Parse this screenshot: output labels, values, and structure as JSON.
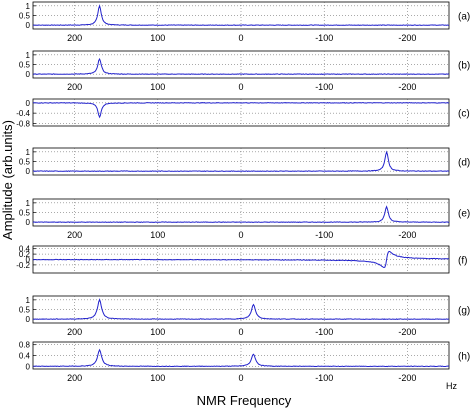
{
  "chart_data": {
    "type": "line",
    "xlabel": "NMR Frequency",
    "ylabel": "Amplitude (arb.units)",
    "x_unit": "Hz",
    "xlim": [
      250,
      -250
    ],
    "x_ticks": [
      200,
      100,
      0,
      -100,
      -200
    ],
    "line_color": "#2222cc",
    "grid": true,
    "panels": [
      {
        "label": "(a)",
        "ylim": [
          -0.2,
          1.2
        ],
        "yticks": [
          0,
          0.5,
          1
        ],
        "ytick_labels": [
          "0",
          "0.5",
          "1"
        ],
        "peaks": [
          {
            "x": 170,
            "y": 1.0,
            "width": 2.5,
            "shape": "absorption"
          }
        ],
        "show_x_ticks": true
      },
      {
        "label": "(b)",
        "ylim": [
          -0.2,
          1.2
        ],
        "yticks": [
          0,
          0.5,
          1
        ],
        "ytick_labels": [
          "0",
          "0.5",
          "1"
        ],
        "peaks": [
          {
            "x": 170,
            "y": 0.8,
            "width": 2.5,
            "shape": "absorption"
          }
        ],
        "show_x_ticks": true
      },
      {
        "label": "(c)",
        "ylim": [
          -0.9,
          0.15
        ],
        "yticks": [
          0,
          -0.4,
          -0.8
        ],
        "ytick_labels": [
          "0",
          "-0.4",
          "-0.8"
        ],
        "peaks": [
          {
            "x": 170,
            "y": -0.55,
            "width": 2.5,
            "shape": "absorption"
          }
        ],
        "show_x_ticks": false
      },
      {
        "label": "(d)",
        "ylim": [
          -0.2,
          1.2
        ],
        "yticks": [
          0,
          0.5,
          1
        ],
        "ytick_labels": [
          "0",
          "0.5",
          "1"
        ],
        "peaks": [
          {
            "x": -175,
            "y": 1.0,
            "width": 2.5,
            "shape": "absorption"
          }
        ],
        "show_x_ticks": false
      },
      {
        "label": "(e)",
        "ylim": [
          -0.2,
          1.2
        ],
        "yticks": [
          0,
          0.5,
          1
        ],
        "ytick_labels": [
          "0",
          "0.5",
          "1"
        ],
        "peaks": [
          {
            "x": -175,
            "y": 0.8,
            "width": 2.5,
            "shape": "absorption"
          }
        ],
        "show_x_ticks": true
      },
      {
        "label": "(f)",
        "ylim": [
          -0.5,
          0.5
        ],
        "yticks": [
          0.4,
          0.2,
          0,
          -0.2
        ],
        "ytick_labels": [
          "0.4",
          "0.2",
          "0",
          "-0.2"
        ],
        "peaks": [
          {
            "x": -175,
            "y": 0.3,
            "width": 3,
            "shape": "dispersion"
          }
        ],
        "show_x_ticks": false
      },
      {
        "label": "(g)",
        "ylim": [
          -0.2,
          1.2
        ],
        "yticks": [
          0,
          0.5,
          1
        ],
        "ytick_labels": [
          "0",
          "0.5",
          "1"
        ],
        "peaks": [
          {
            "x": 170,
            "y": 1.0,
            "width": 3,
            "shape": "absorption"
          },
          {
            "x": -15,
            "y": 0.75,
            "width": 3,
            "shape": "absorption"
          }
        ],
        "show_x_ticks": true
      },
      {
        "label": "(h)",
        "ylim": [
          -0.1,
          0.9
        ],
        "yticks": [
          0,
          0.4,
          0.8
        ],
        "ytick_labels": [
          "0",
          "0.4",
          "0.8"
        ],
        "peaks": [
          {
            "x": 170,
            "y": 0.6,
            "width": 3,
            "shape": "absorption"
          },
          {
            "x": -15,
            "y": 0.45,
            "width": 3,
            "shape": "absorption"
          }
        ],
        "show_x_ticks": true
      }
    ]
  }
}
